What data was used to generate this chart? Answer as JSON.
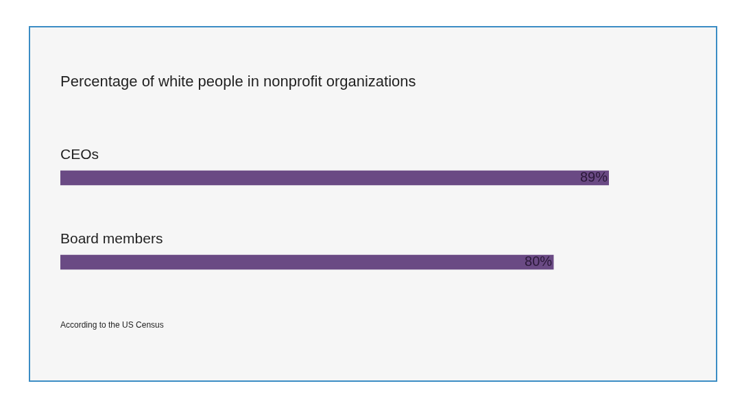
{
  "chart_data": {
    "type": "bar",
    "orientation": "horizontal",
    "title": "Percentage of white people in nonprofit organizations",
    "categories": [
      "CEOs",
      "Board members"
    ],
    "values": [
      89,
      80
    ],
    "color": "#6a4a84",
    "data_labels": true,
    "value_labels": [
      "89%",
      "80%"
    ],
    "annotations": [
      "According to the US Census"
    ]
  }
}
